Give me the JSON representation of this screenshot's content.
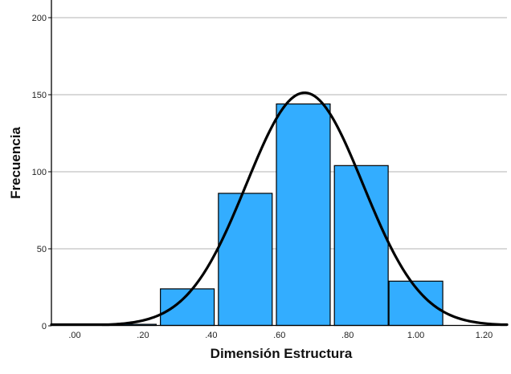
{
  "chart_data": {
    "type": "bar",
    "subtype": "histogram_with_normal_curve",
    "title": "",
    "xlabel": "Dimensión Estructura",
    "ylabel": "Frecuencia",
    "xlim": [
      -0.07,
      1.26
    ],
    "ylim": [
      0,
      210
    ],
    "x_ticks": [
      0.0,
      0.2,
      0.4,
      0.6,
      0.8,
      1.0,
      1.2
    ],
    "x_tick_labels": [
      ".00",
      ".20",
      ".40",
      ".60",
      ".80",
      "1.00",
      "1.20"
    ],
    "y_ticks": [
      0,
      50,
      100,
      150,
      200
    ],
    "y_tick_labels": [
      "0",
      "50",
      "100",
      "150",
      "200"
    ],
    "grid": {
      "horizontal": true,
      "vertical": false,
      "color": "#b3b3b3"
    },
    "legend": null,
    "bins": [
      {
        "start": 0.08,
        "end": 0.24,
        "count": 1
      },
      {
        "start": 0.25,
        "end": 0.41,
        "count": 24
      },
      {
        "start": 0.42,
        "end": 0.58,
        "count": 86
      },
      {
        "start": 0.59,
        "end": 0.75,
        "count": 144
      },
      {
        "start": 0.76,
        "end": 0.92,
        "count": 104
      },
      {
        "start": 0.92,
        "end": 1.08,
        "count": 29
      }
    ],
    "categories": [
      "0.08–0.24",
      "0.25–0.41",
      "0.42–0.58",
      "0.59–0.75",
      "0.76–0.92",
      "0.92–1.08"
    ],
    "values": [
      1,
      24,
      86,
      144,
      104,
      29
    ],
    "normal_curve": {
      "mean": 0.674,
      "std_dev": 0.171,
      "n": 388,
      "bin_width": 0.1666,
      "peak": 151
    },
    "colors": {
      "bar_fill": "#33adff",
      "bar_stroke": "#000000",
      "curve": "#000000",
      "grid": "#b3b3b3"
    }
  }
}
